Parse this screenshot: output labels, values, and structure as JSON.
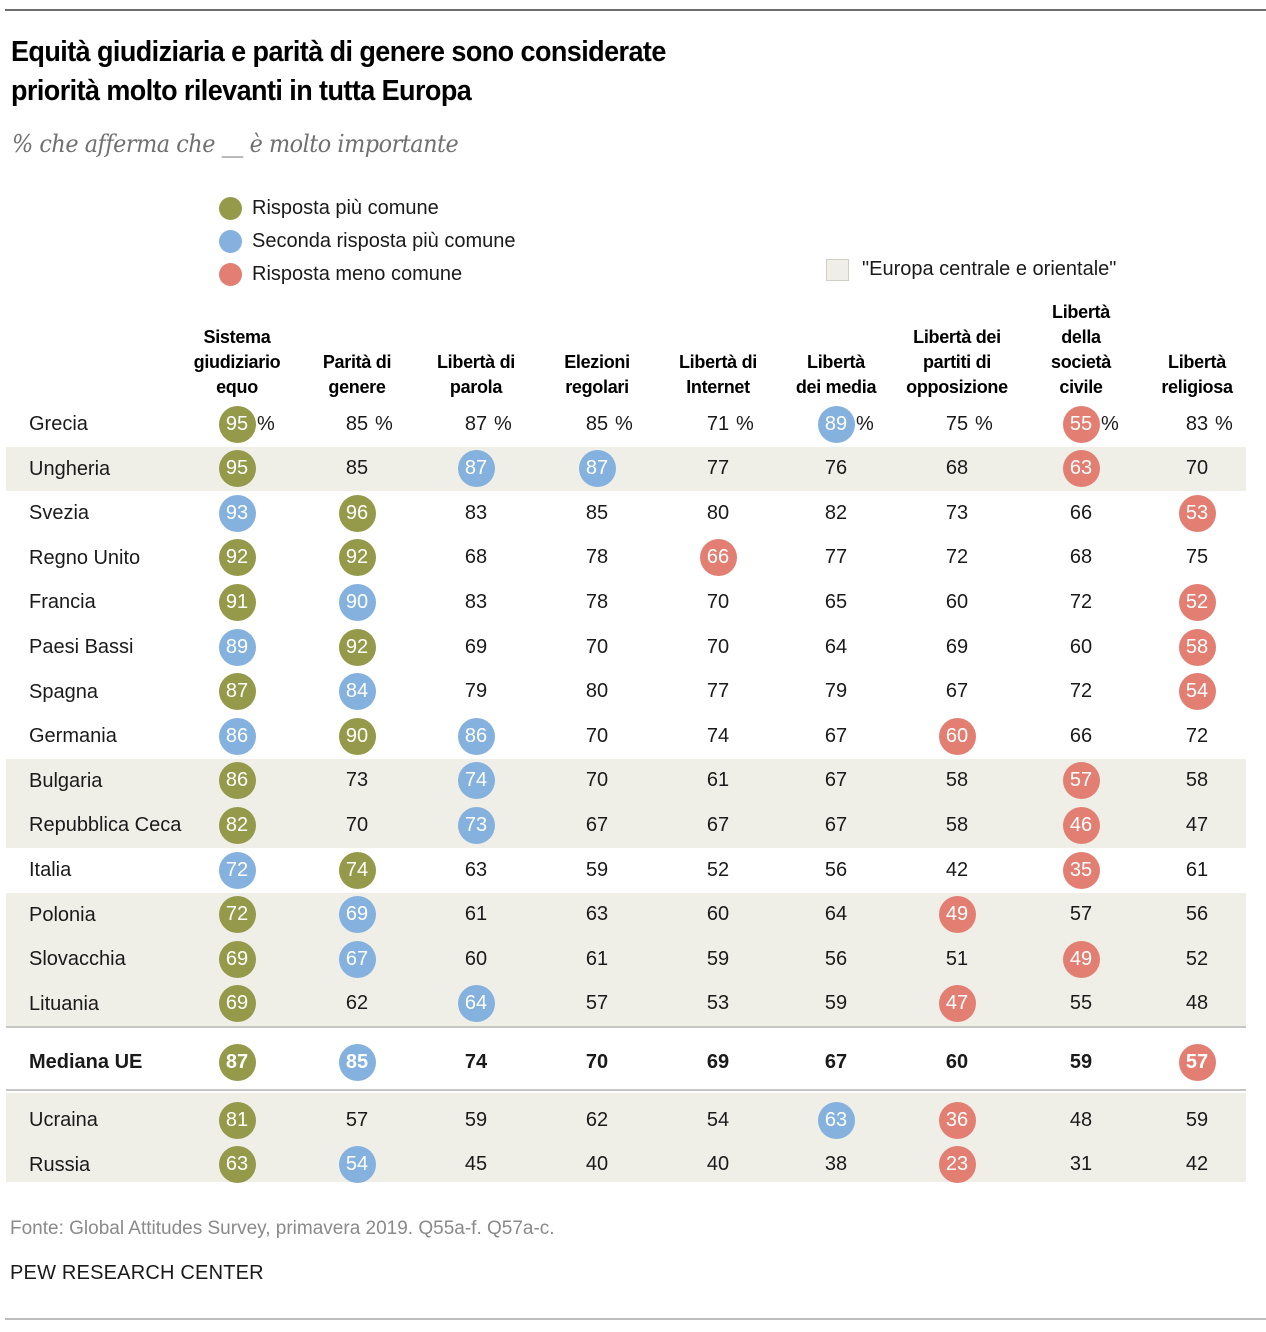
{
  "header": {
    "title_line1": "Equità giudiziaria e parità di genere sono considerate",
    "title_line2": "priorità molto rilevanti in tutta Europa",
    "subtitle": "% che afferma che __ è molto importante"
  },
  "legend": {
    "items": [
      {
        "key": "most",
        "label": "Risposta più comune",
        "color": "#949a4a"
      },
      {
        "key": "second",
        "label": "Seconda risposta più comune",
        "color": "#84b1de"
      },
      {
        "key": "least",
        "label": "Risposta meno comune",
        "color": "#e27f72"
      }
    ],
    "cee_label": "\"Europa centrale e orientale\"",
    "cee_color": "#f0efe7"
  },
  "footer": {
    "source": "Fonte: Global Attitudes Survey, primavera 2019. Q55a-f. Q57a-c.",
    "brand": "PEW RESEARCH CENTER"
  },
  "chart_data": {
    "type": "table",
    "title": "Equità giudiziaria e parità di genere sono considerate priorità molto rilevanti in tutta Europa",
    "subtitle": "% che afferma che __ è molto importante",
    "unit": "%",
    "columns": [
      [
        "Sistema",
        "giudiziario",
        "equo"
      ],
      [
        "Parità di",
        "genere"
      ],
      [
        "Libertà di",
        "parola"
      ],
      [
        "Elezioni",
        "regolari"
      ],
      [
        "Libertà di",
        "Internet"
      ],
      [
        "Libertà",
        "dei media"
      ],
      [
        "Libertà dei",
        "partiti di",
        "opposizione"
      ],
      [
        "Libertà",
        "della",
        "società",
        "civile"
      ],
      [
        "Libertà",
        "religiosa"
      ]
    ],
    "highlight_legend": {
      "g": "Risposta più comune",
      "b": "Seconda risposta più comune",
      "r": "Risposta meno comune"
    },
    "rows": [
      {
        "country": "Grecia",
        "cee": false,
        "values": [
          95,
          85,
          87,
          85,
          71,
          89,
          75,
          55,
          83
        ],
        "highlight": [
          "g",
          "",
          "",
          "",
          "",
          "b",
          "",
          "r",
          ""
        ]
      },
      {
        "country": "Ungheria",
        "cee": true,
        "values": [
          95,
          85,
          87,
          87,
          77,
          76,
          68,
          63,
          70
        ],
        "highlight": [
          "g",
          "",
          "b",
          "b",
          "",
          "",
          "",
          "r",
          ""
        ]
      },
      {
        "country": "Svezia",
        "cee": false,
        "values": [
          93,
          96,
          83,
          85,
          80,
          82,
          73,
          66,
          53
        ],
        "highlight": [
          "b",
          "g",
          "",
          "",
          "",
          "",
          "",
          "",
          "r"
        ]
      },
      {
        "country": "Regno Unito",
        "cee": false,
        "values": [
          92,
          92,
          68,
          78,
          66,
          77,
          72,
          68,
          75
        ],
        "highlight": [
          "g",
          "g",
          "",
          "",
          "r",
          "",
          "",
          "",
          ""
        ]
      },
      {
        "country": "Francia",
        "cee": false,
        "values": [
          91,
          90,
          83,
          78,
          70,
          65,
          60,
          72,
          52
        ],
        "highlight": [
          "g",
          "b",
          "",
          "",
          "",
          "",
          "",
          "",
          "r"
        ]
      },
      {
        "country": "Paesi Bassi",
        "cee": false,
        "values": [
          89,
          92,
          69,
          70,
          70,
          64,
          69,
          60,
          58
        ],
        "highlight": [
          "b",
          "g",
          "",
          "",
          "",
          "",
          "",
          "",
          "r"
        ]
      },
      {
        "country": "Spagna",
        "cee": false,
        "values": [
          87,
          84,
          79,
          80,
          77,
          79,
          67,
          72,
          54
        ],
        "highlight": [
          "g",
          "b",
          "",
          "",
          "",
          "",
          "",
          "",
          "r"
        ]
      },
      {
        "country": "Germania",
        "cee": false,
        "values": [
          86,
          90,
          86,
          70,
          74,
          67,
          60,
          66,
          72
        ],
        "highlight": [
          "b",
          "g",
          "b",
          "",
          "",
          "",
          "r",
          "",
          ""
        ]
      },
      {
        "country": "Bulgaria",
        "cee": true,
        "values": [
          86,
          73,
          74,
          70,
          61,
          67,
          58,
          57,
          58
        ],
        "highlight": [
          "g",
          "",
          "b",
          "",
          "",
          "",
          "",
          "r",
          ""
        ]
      },
      {
        "country": "Repubblica Ceca",
        "cee": true,
        "values": [
          82,
          70,
          73,
          67,
          67,
          67,
          58,
          46,
          47
        ],
        "highlight": [
          "g",
          "",
          "b",
          "",
          "",
          "",
          "",
          "r",
          ""
        ]
      },
      {
        "country": "Italia",
        "cee": false,
        "values": [
          72,
          74,
          63,
          59,
          52,
          56,
          42,
          35,
          61
        ],
        "highlight": [
          "b",
          "g",
          "",
          "",
          "",
          "",
          "",
          "r",
          ""
        ]
      },
      {
        "country": "Polonia",
        "cee": true,
        "values": [
          72,
          69,
          61,
          63,
          60,
          64,
          49,
          57,
          56
        ],
        "highlight": [
          "g",
          "b",
          "",
          "",
          "",
          "",
          "r",
          "",
          ""
        ]
      },
      {
        "country": "Slovacchia",
        "cee": true,
        "values": [
          69,
          67,
          60,
          61,
          59,
          56,
          51,
          49,
          52
        ],
        "highlight": [
          "g",
          "b",
          "",
          "",
          "",
          "",
          "",
          "r",
          ""
        ]
      },
      {
        "country": "Lituania",
        "cee": true,
        "values": [
          69,
          62,
          64,
          57,
          53,
          59,
          47,
          55,
          48
        ],
        "highlight": [
          "g",
          "",
          "b",
          "",
          "",
          "",
          "r",
          "",
          ""
        ]
      }
    ],
    "median": {
      "country": "Mediana UE",
      "values": [
        87,
        85,
        74,
        70,
        69,
        67,
        60,
        59,
        57
      ],
      "highlight": [
        "g",
        "b",
        "",
        "",
        "",
        "",
        "",
        "",
        "r"
      ]
    },
    "non_eu_rows": [
      {
        "country": "Ucraina",
        "cee": true,
        "values": [
          81,
          57,
          59,
          62,
          54,
          63,
          36,
          48,
          59
        ],
        "highlight": [
          "g",
          "",
          "",
          "",
          "",
          "b",
          "r",
          "",
          ""
        ]
      },
      {
        "country": "Russia",
        "cee": true,
        "values": [
          63,
          54,
          45,
          40,
          40,
          38,
          23,
          31,
          42
        ],
        "highlight": [
          "g",
          "b",
          "",
          "",
          "",
          "",
          "r",
          "",
          ""
        ]
      }
    ]
  }
}
